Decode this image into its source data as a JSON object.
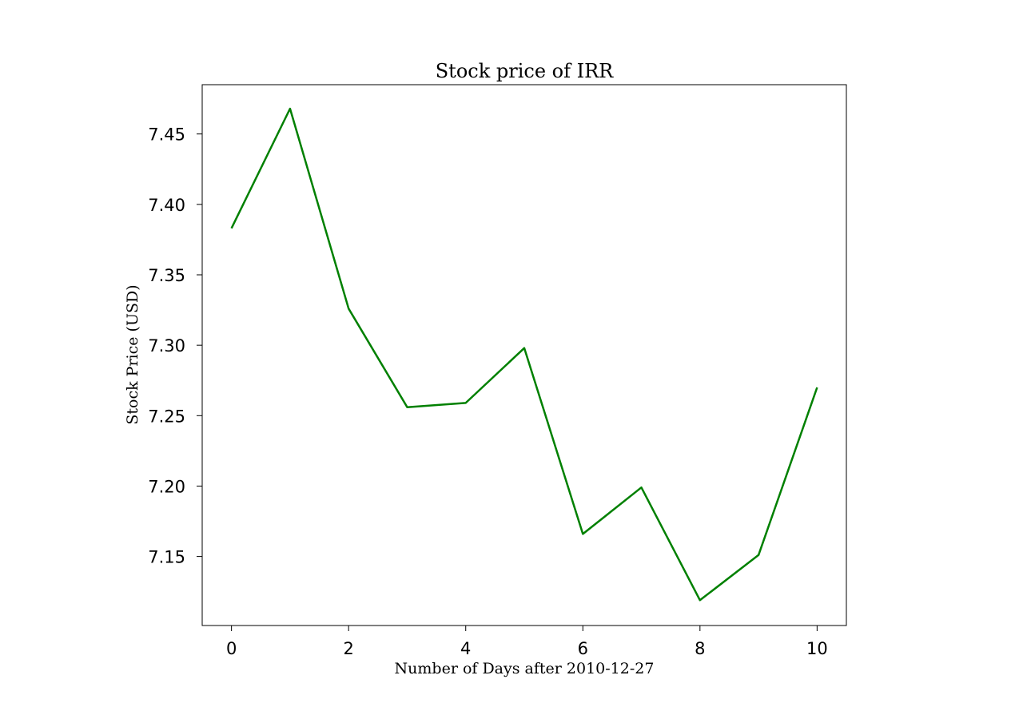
{
  "chart_data": {
    "type": "line",
    "title": "Stock price of IRR",
    "xlabel": "Number of Days after 2010-12-27",
    "ylabel": "Stock Price (USD)",
    "x": [
      0,
      1,
      2,
      3,
      4,
      5,
      6,
      7,
      8,
      9,
      10
    ],
    "series": [
      {
        "values": [
          7.383,
          7.468,
          7.326,
          7.256,
          7.259,
          7.298,
          7.166,
          7.199,
          7.119,
          7.151,
          7.27
        ],
        "color": "#008000"
      }
    ],
    "xlim": [
      -0.5,
      10.5
    ],
    "ylim": [
      7.101,
      7.485
    ],
    "xticks": [
      0,
      2,
      4,
      6,
      8,
      10
    ],
    "xtick_labels": [
      "0",
      "2",
      "4",
      "6",
      "8",
      "10"
    ],
    "yticks": [
      7.15,
      7.2,
      7.25,
      7.3,
      7.35,
      7.4,
      7.45
    ],
    "ytick_labels": [
      "7.15",
      "7.20",
      "7.25",
      "7.30",
      "7.35",
      "7.40",
      "7.45"
    ],
    "grid": false,
    "legend": "none"
  }
}
